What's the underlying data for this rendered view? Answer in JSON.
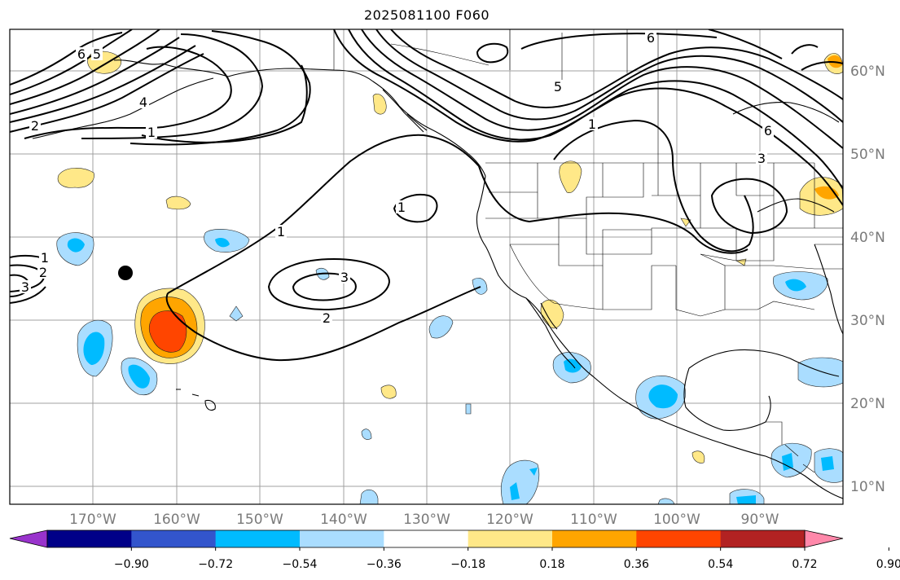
{
  "title": "2025081100 F060",
  "map": {
    "lat_labels": [
      "60°N",
      "50°N",
      "40°N",
      "30°N",
      "20°N",
      "10°N"
    ],
    "lon_labels": [
      "170°W",
      "160°W",
      "150°W",
      "140°W",
      "130°W",
      "120°W",
      "110°W",
      "100°W",
      "90°W"
    ],
    "contour_labels": [
      "6",
      "5",
      "4",
      "2",
      "1",
      "6",
      "5",
      "1",
      "6",
      "3",
      "1",
      "1",
      "3",
      "2",
      "1",
      "2",
      "3"
    ]
  },
  "colorbar": {
    "colors": [
      "#9933cc",
      "#000088",
      "#3355cc",
      "#00bbff",
      "#aaddff",
      "#ffffff",
      "#ffe888",
      "#ffa500",
      "#ff4500",
      "#b22222",
      "#ff88aa"
    ],
    "tick_labels": [
      "−0.90",
      "−0.72",
      "−0.54",
      "−0.36",
      "−0.18",
      "0.18",
      "0.36",
      "0.54",
      "0.72",
      "0.90"
    ]
  },
  "marker": {
    "type": "black-dot"
  }
}
